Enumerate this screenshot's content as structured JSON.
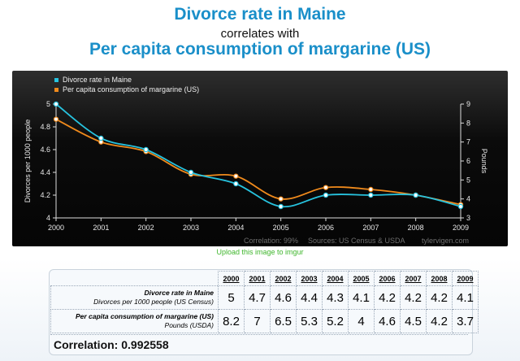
{
  "header": {
    "title_primary": "Divorce rate in Maine",
    "connector": "correlates with",
    "title_secondary": "Per capita consumption of margarine (US)"
  },
  "chart_data": {
    "type": "line",
    "x": [
      2000,
      2001,
      2002,
      2003,
      2004,
      2005,
      2006,
      2007,
      2008,
      2009
    ],
    "series": [
      {
        "name": "Divorce rate in Maine",
        "axis": "left",
        "color": "#27c3df",
        "values": [
          5,
          4.7,
          4.6,
          4.4,
          4.3,
          4.1,
          4.2,
          4.2,
          4.2,
          4.1
        ]
      },
      {
        "name": "Per capita consumption of margarine (US)",
        "axis": "right",
        "color": "#f08a1c",
        "values": [
          8.2,
          7,
          6.5,
          5.3,
          5.2,
          4,
          4.6,
          4.5,
          4.2,
          3.7
        ]
      }
    ],
    "ylabel": "Divorces per 1000 people",
    "ylabel_right": "Pounds",
    "ylim": [
      4,
      5
    ],
    "ylim_right": [
      3,
      9
    ],
    "yticks": [
      "4",
      "4.2",
      "4.4",
      "4.6",
      "4.8",
      "5"
    ],
    "yticks_right": [
      "3",
      "4",
      "5",
      "6",
      "7",
      "8",
      "9"
    ],
    "legend_position": "top-left",
    "footer": {
      "correlation": "Correlation: 99%",
      "sources": "Sources: US Census & USDA",
      "site": "tylervigen.com"
    }
  },
  "upload_link": "Upload this image to imgur",
  "table": {
    "years": [
      "2000",
      "2001",
      "2002",
      "2003",
      "2004",
      "2005",
      "2006",
      "2007",
      "2008",
      "2009"
    ],
    "rows": [
      {
        "label": "Divorce rate in Maine",
        "sublabel": "Divorces per 1000 people (US Census)",
        "values": [
          "5",
          "4.7",
          "4.6",
          "4.4",
          "4.3",
          "4.1",
          "4.2",
          "4.2",
          "4.2",
          "4.1"
        ]
      },
      {
        "label": "Per capita consumption of margarine (US)",
        "sublabel": "Pounds (USDA)",
        "values": [
          "8.2",
          "7",
          "6.5",
          "5.3",
          "5.2",
          "4",
          "4.6",
          "4.5",
          "4.2",
          "3.7"
        ]
      }
    ],
    "correlation": "Correlation: 0.992558"
  }
}
